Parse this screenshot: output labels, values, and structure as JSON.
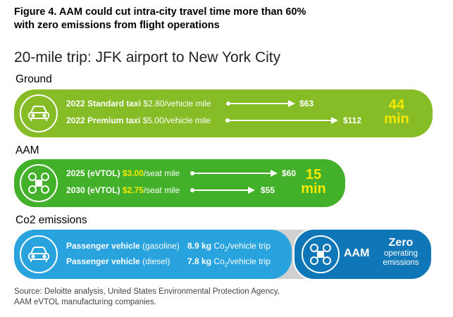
{
  "figure_title": "Figure 4. AAM could cut intra-city travel time more than 60% with zero emissions from flight operations",
  "subtitle": "20-mile trip: JFK airport to New York City",
  "sections": {
    "ground": "Ground",
    "aam": "AAM",
    "co2": "Co2 emissions"
  },
  "ground": {
    "icon": "car-icon",
    "rows": [
      {
        "label": "2022 Standard taxi",
        "rate": "$2.80/vehicle mile",
        "price": "$63"
      },
      {
        "label": "2022 Premium taxi",
        "rate": "$5.00/vehicle mile",
        "price": "$112"
      }
    ],
    "duration_value": "44",
    "duration_unit": "min"
  },
  "aam": {
    "icon": "drone-icon",
    "rows": [
      {
        "label": "2025 (eVTOL)",
        "rate": "$3.00",
        "rate_unit": "/seat mile",
        "price": "$60"
      },
      {
        "label": "2030 (eVTOL)",
        "rate": "$2.75",
        "rate_unit": "/seat mile",
        "price": "$55"
      }
    ],
    "duration_value": "15",
    "duration_unit": "min"
  },
  "co2": {
    "icon": "car-icon",
    "rows": [
      {
        "label": "Passenger vehicle",
        "fuel": "(gasoline)",
        "amount": "8.9 kg",
        "unit_prefix": "Co",
        "unit_sub": "2",
        "unit_suffix": "/vehicle trip"
      },
      {
        "label": "Passenger vehicle",
        "fuel": "(diesel)",
        "amount": "7.8 kg",
        "unit_prefix": "Co",
        "unit_sub": "2",
        "unit_suffix": "/vehicle trip"
      }
    ],
    "aam_icon": "drone-icon",
    "aam_label": "AAM",
    "zero_label": "Zero",
    "zero_sub1": "operating",
    "zero_sub2": "emissions"
  },
  "source_line1": "Source: Deloitte analysis, United States Environmental Protection Agency,",
  "source_line2": "AAM eVTOL manufacturing companies.",
  "colors": {
    "ground_green": "#86bc25",
    "aam_green": "#43b02a",
    "highlight_yellow": "#f5e800",
    "co2_blue": "#29a3dd",
    "aam_dark_blue": "#0f76b8",
    "grey_bar": "#d0d0d0"
  }
}
